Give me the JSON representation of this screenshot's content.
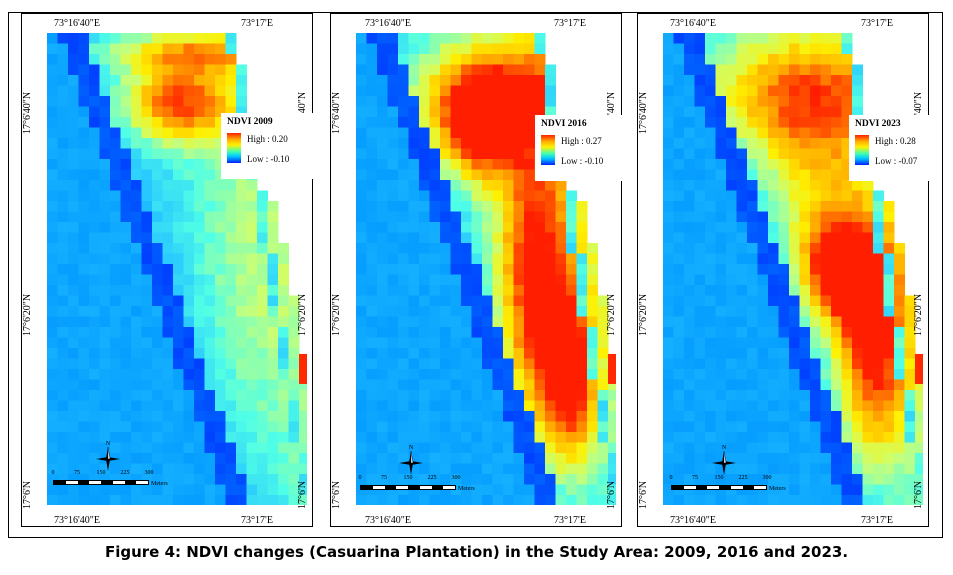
{
  "caption": "Figure 4: NDVI changes (Casuarina Plantation) in the Study Area: 2009, 2016 and 2023.",
  "coordinates": {
    "lon_left": "73°16'40\"E",
    "lon_right": "73°17'E",
    "lat_top": "17°6'40\"N",
    "lat_mid": "17°6'20\"N",
    "lat_bottom": "17°6'N"
  },
  "scale_bar": {
    "ticks": [
      "0",
      "75",
      "150",
      "225",
      "300"
    ],
    "unit": "Meters"
  },
  "north_label": "N",
  "legend_colors": {
    "high": "#ff2000",
    "mid": "#fff000",
    "low": "#0020ff"
  },
  "panels": [
    {
      "title": "NDVI 2009",
      "high": "High : 0.20",
      "low": "Low : -0.10",
      "year": 2009
    },
    {
      "title": "NDVI 2016",
      "high": "High : 0.27",
      "low": "Low : -0.10",
      "year": 2016
    },
    {
      "title": "NDVI 2023",
      "high": "High : 0.28",
      "low": "Low : -0.07",
      "year": 2023
    }
  ]
}
